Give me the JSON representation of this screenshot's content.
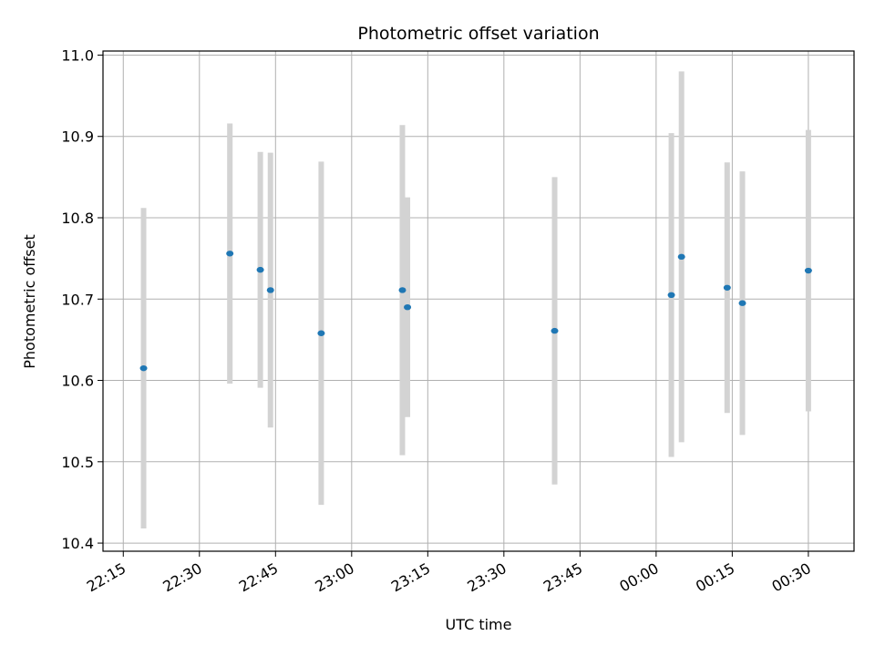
{
  "chart_data": {
    "type": "scatter",
    "title": "Photometric offset variation",
    "xlabel": "UTC time",
    "ylabel": "Photometric offset",
    "xlim": [
      "22:11",
      "00:39"
    ],
    "ylim": [
      10.39,
      11.005
    ],
    "x_ticks": [
      "22:15",
      "22:30",
      "22:45",
      "23:00",
      "23:15",
      "23:30",
      "23:45",
      "00:00",
      "00:15",
      "00:30"
    ],
    "y_ticks": [
      10.4,
      10.5,
      10.6,
      10.7,
      10.8,
      10.9,
      11.0
    ],
    "y_tick_labels": [
      "10.4",
      "10.5",
      "10.6",
      "10.7",
      "10.8",
      "10.9",
      "11.0"
    ],
    "grid": true,
    "points": [
      {
        "x": "22:19",
        "y": 10.615,
        "err": 0.197
      },
      {
        "x": "22:36",
        "y": 10.756,
        "err": 0.16
      },
      {
        "x": "22:42",
        "y": 10.736,
        "err": 0.145
      },
      {
        "x": "22:44",
        "y": 10.711,
        "err": 0.169
      },
      {
        "x": "22:54",
        "y": 10.658,
        "err": 0.211
      },
      {
        "x": "23:10",
        "y": 10.711,
        "err": 0.203
      },
      {
        "x": "23:11",
        "y": 10.69,
        "err": 0.135
      },
      {
        "x": "23:40",
        "y": 10.661,
        "err": 0.189
      },
      {
        "x": "00:03",
        "y": 10.705,
        "err": 0.199
      },
      {
        "x": "00:05",
        "y": 10.752,
        "err": 0.228
      },
      {
        "x": "00:14",
        "y": 10.714,
        "err": 0.154
      },
      {
        "x": "00:17",
        "y": 10.695,
        "err": 0.162
      },
      {
        "x": "00:30",
        "y": 10.735,
        "err": 0.173
      }
    ],
    "colors": {
      "marker": "#1f77b4",
      "errorbar": "#d3d3d3",
      "grid": "#b0b0b0"
    }
  }
}
